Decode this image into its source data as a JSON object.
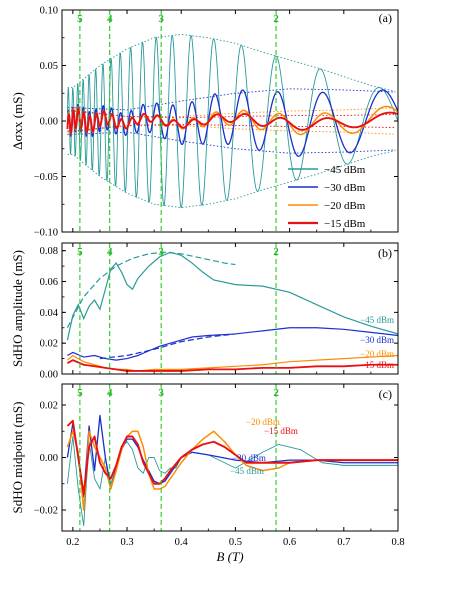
{
  "chart_data": [
    {
      "type": "line",
      "panel_tag": "(a)",
      "ylabel": "Δσxx (mS)",
      "xlim": [
        0.18,
        0.8
      ],
      "ylim": [
        -0.1,
        0.1
      ],
      "yticks": [
        "0.10",
        "0.05",
        "0.00",
        "−0.05",
        "−0.10"
      ],
      "ytick_values": [
        0.1,
        0.05,
        0.0,
        -0.05,
        -0.1
      ],
      "filling_factors": [
        {
          "label": "5",
          "x": 0.213
        },
        {
          "label": "4",
          "x": 0.268
        },
        {
          "label": "3",
          "x": 0.363
        },
        {
          "label": "2",
          "x": 0.575
        }
      ],
      "legend": {
        "placement": "bottom-right",
        "entries": [
          {
            "label": "−45 dBm",
            "color": "#2a9a9a"
          },
          {
            "label": "−30 dBm",
            "color": "#1a2fd0"
          },
          {
            "label": "−20 dBm",
            "color": "#ff8c00"
          },
          {
            "label": "−15 dBm",
            "color": "#e81010"
          }
        ]
      },
      "series": [
        {
          "name": "−45 dBm",
          "color": "#2a9a9a",
          "description_points": {
            "x": [
              0.2,
              0.25,
              0.3,
              0.35,
              0.4,
              0.45,
              0.5,
              0.55,
              0.6,
              0.65,
              0.7,
              0.75,
              0.8
            ],
            "amplitude": [
              0.03,
              0.05,
              0.065,
              0.075,
              0.078,
              0.075,
              0.07,
              0.062,
              0.055,
              0.048,
              0.04,
              0.032,
              0.026
            ]
          }
        },
        {
          "name": "−30 dBm",
          "color": "#1a2fd0",
          "description_points": {
            "x": [
              0.2,
              0.3,
              0.4,
              0.5,
              0.6,
              0.7,
              0.8
            ],
            "amplitude": [
              0.012,
              0.01,
              0.018,
              0.025,
              0.029,
              0.028,
              0.026
            ]
          }
        },
        {
          "name": "−20 dBm",
          "color": "#ff8c00",
          "description_points": {
            "x": [
              0.2,
              0.3,
              0.4,
              0.5,
              0.6,
              0.7,
              0.8
            ],
            "amplitude": [
              0.01,
              0.004,
              0.004,
              0.007,
              0.009,
              0.01,
              0.012
            ]
          }
        },
        {
          "name": "−15 dBm",
          "color": "#e81010",
          "description_points": {
            "x": [
              0.2,
              0.3,
              0.4,
              0.5,
              0.6,
              0.7,
              0.8
            ],
            "amplitude": [
              0.009,
              0.004,
              0.003,
              0.004,
              0.005,
              0.005,
              0.006
            ]
          }
        }
      ]
    },
    {
      "type": "line",
      "panel_tag": "(b)",
      "ylabel": "SdHO amplitude (mS)",
      "xlim": [
        0.18,
        0.8
      ],
      "ylim": [
        0.0,
        0.085
      ],
      "yticks": [
        "0.08",
        "0.06",
        "0.04",
        "0.02",
        "0.00"
      ],
      "ytick_values": [
        0.08,
        0.06,
        0.04,
        0.02,
        0.0
      ],
      "series_labels": [
        "−45 dBm",
        "−30 dBm",
        "−20 dBm",
        "−15 dBm"
      ],
      "series": [
        {
          "name": "−45 dBm",
          "color": "#2a9a9a",
          "x": [
            0.19,
            0.2,
            0.21,
            0.22,
            0.23,
            0.24,
            0.25,
            0.26,
            0.27,
            0.28,
            0.29,
            0.3,
            0.31,
            0.32,
            0.34,
            0.36,
            0.38,
            0.4,
            0.42,
            0.44,
            0.46,
            0.5,
            0.55,
            0.6,
            0.65,
            0.7,
            0.75,
            0.8
          ],
          "y": [
            0.022,
            0.038,
            0.045,
            0.036,
            0.044,
            0.048,
            0.042,
            0.055,
            0.068,
            0.072,
            0.066,
            0.058,
            0.055,
            0.062,
            0.07,
            0.076,
            0.079,
            0.077,
            0.072,
            0.066,
            0.061,
            0.058,
            0.057,
            0.053,
            0.045,
            0.037,
            0.031,
            0.026
          ]
        },
        {
          "name": "−30 dBm",
          "color": "#1a2fd0",
          "x": [
            0.19,
            0.2,
            0.22,
            0.24,
            0.26,
            0.28,
            0.3,
            0.32,
            0.34,
            0.36,
            0.38,
            0.4,
            0.42,
            0.45,
            0.5,
            0.55,
            0.6,
            0.65,
            0.7,
            0.75,
            0.8
          ],
          "y": [
            0.012,
            0.014,
            0.011,
            0.012,
            0.01,
            0.009,
            0.01,
            0.012,
            0.015,
            0.018,
            0.02,
            0.022,
            0.024,
            0.025,
            0.026,
            0.028,
            0.03,
            0.03,
            0.029,
            0.027,
            0.025
          ]
        },
        {
          "name": "−20 dBm",
          "color": "#ff8c00",
          "x": [
            0.19,
            0.2,
            0.22,
            0.24,
            0.26,
            0.28,
            0.3,
            0.32,
            0.35,
            0.4,
            0.45,
            0.5,
            0.55,
            0.6,
            0.65,
            0.7,
            0.75,
            0.8
          ],
          "y": [
            0.009,
            0.012,
            0.008,
            0.006,
            0.004,
            0.003,
            0.003,
            0.002,
            0.003,
            0.003,
            0.004,
            0.005,
            0.006,
            0.008,
            0.009,
            0.01,
            0.011,
            0.012
          ]
        },
        {
          "name": "−15 dBm",
          "color": "#e81010",
          "x": [
            0.19,
            0.2,
            0.22,
            0.24,
            0.26,
            0.28,
            0.3,
            0.32,
            0.35,
            0.4,
            0.45,
            0.5,
            0.55,
            0.6,
            0.65,
            0.7,
            0.75,
            0.8
          ],
          "y": [
            0.007,
            0.009,
            0.006,
            0.005,
            0.004,
            0.003,
            0.002,
            0.002,
            0.002,
            0.002,
            0.003,
            0.003,
            0.004,
            0.004,
            0.005,
            0.005,
            0.006,
            0.006
          ]
        },
        {
          "name": "−45 dBm",
          "dashed": true,
          "color": "#2a9a9a",
          "x": [
            0.19,
            0.22,
            0.25,
            0.28,
            0.31,
            0.34,
            0.37,
            0.4,
            0.44,
            0.48,
            0.5
          ],
          "y": [
            0.03,
            0.05,
            0.062,
            0.07,
            0.075,
            0.078,
            0.079,
            0.078,
            0.075,
            0.072,
            0.071
          ]
        },
        {
          "name": "−30 dBm",
          "dashed": true,
          "color": "#1a2fd0",
          "x": [
            0.25,
            0.3,
            0.35,
            0.4,
            0.45,
            0.5
          ],
          "y": [
            0.01,
            0.012,
            0.016,
            0.021,
            0.024,
            0.026
          ]
        }
      ]
    },
    {
      "type": "line",
      "panel_tag": "(c)",
      "ylabel": "SdHO midpoint (mS)",
      "xlabel": "B (T)",
      "xlim": [
        0.18,
        0.8
      ],
      "ylim": [
        -0.028,
        0.028
      ],
      "xticks": [
        "0.2",
        "0.3",
        "0.4",
        "0.5",
        "0.6",
        "0.7",
        "0.8"
      ],
      "xtick_values": [
        0.2,
        0.3,
        0.4,
        0.5,
        0.6,
        0.7,
        0.8
      ],
      "yticks": [
        "0.02",
        "0.00",
        "−0.02"
      ],
      "ytick_values": [
        0.02,
        0.0,
        -0.02
      ],
      "series_labels": [
        "−20 dBm",
        "−15 dBm",
        "−30 dBm",
        "−45 dBm"
      ],
      "series": [
        {
          "name": "−45 dBm",
          "color": "#2a9a9a",
          "x": [
            0.19,
            0.2,
            0.21,
            0.22,
            0.23,
            0.24,
            0.25,
            0.26,
            0.27,
            0.28,
            0.29,
            0.3,
            0.31,
            0.32,
            0.33,
            0.34,
            0.35,
            0.36,
            0.37,
            0.38,
            0.39,
            0.4,
            0.42,
            0.45,
            0.5,
            0.55,
            0.58,
            0.62,
            0.66,
            0.7,
            0.75,
            0.8
          ],
          "y": [
            -0.01,
            0.008,
            -0.012,
            -0.026,
            0.006,
            -0.008,
            -0.012,
            0.0,
            -0.01,
            -0.004,
            0.004,
            0.006,
            0.003,
            -0.004,
            -0.006,
            0.0,
            0.0,
            -0.005,
            -0.006,
            -0.004,
            -0.004,
            0.0,
            0.002,
            0.001,
            -0.004,
            0.002,
            0.005,
            0.003,
            -0.002,
            -0.003,
            -0.003,
            -0.003
          ]
        },
        {
          "name": "−30 dBm",
          "color": "#1a2fd0",
          "x": [
            0.19,
            0.2,
            0.21,
            0.22,
            0.23,
            0.24,
            0.25,
            0.26,
            0.27,
            0.28,
            0.29,
            0.3,
            0.31,
            0.32,
            0.33,
            0.34,
            0.35,
            0.36,
            0.37,
            0.38,
            0.4,
            0.42,
            0.45,
            0.5,
            0.55,
            0.6,
            0.65,
            0.7,
            0.75,
            0.8
          ],
          "y": [
            0.0,
            0.013,
            0.0,
            -0.015,
            0.012,
            -0.005,
            0.016,
            0.0,
            -0.012,
            -0.004,
            0.003,
            0.007,
            0.007,
            0.004,
            -0.001,
            -0.005,
            -0.009,
            -0.01,
            -0.009,
            -0.006,
            0.0,
            0.002,
            0.001,
            -0.001,
            -0.002,
            -0.001,
            -0.001,
            -0.002,
            -0.002,
            -0.002
          ]
        },
        {
          "name": "−20 dBm",
          "color": "#ff8c00",
          "x": [
            0.19,
            0.2,
            0.21,
            0.22,
            0.23,
            0.24,
            0.25,
            0.26,
            0.27,
            0.28,
            0.29,
            0.3,
            0.31,
            0.32,
            0.33,
            0.34,
            0.35,
            0.36,
            0.37,
            0.38,
            0.4,
            0.42,
            0.44,
            0.46,
            0.48,
            0.5,
            0.52,
            0.55,
            0.58,
            0.6,
            0.65,
            0.7,
            0.75,
            0.8
          ],
          "y": [
            0.004,
            0.01,
            0.002,
            -0.02,
            0.01,
            0.004,
            0.0,
            -0.004,
            -0.012,
            -0.005,
            0.003,
            0.008,
            0.01,
            0.01,
            0.004,
            -0.006,
            -0.012,
            -0.012,
            -0.011,
            -0.008,
            -0.002,
            0.003,
            0.007,
            0.01,
            0.006,
            0.001,
            -0.003,
            -0.005,
            -0.004,
            -0.002,
            -0.001,
            -0.001,
            -0.001,
            -0.001
          ]
        },
        {
          "name": "−15 dBm",
          "color": "#e81010",
          "x": [
            0.19,
            0.2,
            0.21,
            0.22,
            0.23,
            0.24,
            0.25,
            0.26,
            0.27,
            0.28,
            0.29,
            0.3,
            0.31,
            0.32,
            0.33,
            0.34,
            0.35,
            0.36,
            0.37,
            0.38,
            0.4,
            0.42,
            0.44,
            0.46,
            0.48,
            0.5,
            0.52,
            0.55,
            0.6,
            0.65,
            0.7,
            0.75,
            0.8
          ],
          "y": [
            0.012,
            0.014,
            0.0,
            -0.014,
            0.004,
            0.008,
            -0.002,
            -0.006,
            -0.008,
            -0.003,
            0.004,
            0.008,
            0.008,
            0.005,
            -0.002,
            -0.006,
            -0.01,
            -0.01,
            -0.008,
            -0.005,
            0.0,
            0.003,
            0.005,
            0.006,
            0.004,
            0.001,
            -0.002,
            -0.002,
            -0.002,
            -0.001,
            -0.001,
            -0.001,
            -0.001
          ]
        }
      ]
    }
  ]
}
